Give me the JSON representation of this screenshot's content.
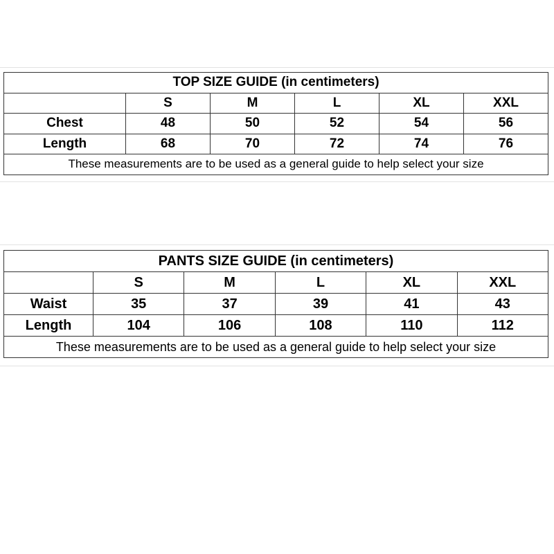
{
  "top_guide": {
    "title": "TOP SIZE GUIDE (in centimeters)",
    "sizes": [
      "S",
      "M",
      "L",
      "XL",
      "XXL"
    ],
    "rows": [
      {
        "label": "Chest",
        "values": [
          "48",
          "50",
          "52",
          "54",
          "56"
        ]
      },
      {
        "label": "Length",
        "values": [
          "68",
          "70",
          "72",
          "74",
          "76"
        ]
      }
    ],
    "note": "These measurements are to be used as a general guide to help select your size"
  },
  "pants_guide": {
    "title": "PANTS SIZE GUIDE (in centimeters)",
    "sizes": [
      "S",
      "M",
      "L",
      "XL",
      "XXL"
    ],
    "rows": [
      {
        "label": "Waist",
        "values": [
          "35",
          "37",
          "39",
          "41",
          "43"
        ]
      },
      {
        "label": "Length",
        "values": [
          "104",
          "106",
          "108",
          "110",
          "112"
        ]
      }
    ],
    "note": "These measurements are to be used as a general guide to help select your size"
  }
}
